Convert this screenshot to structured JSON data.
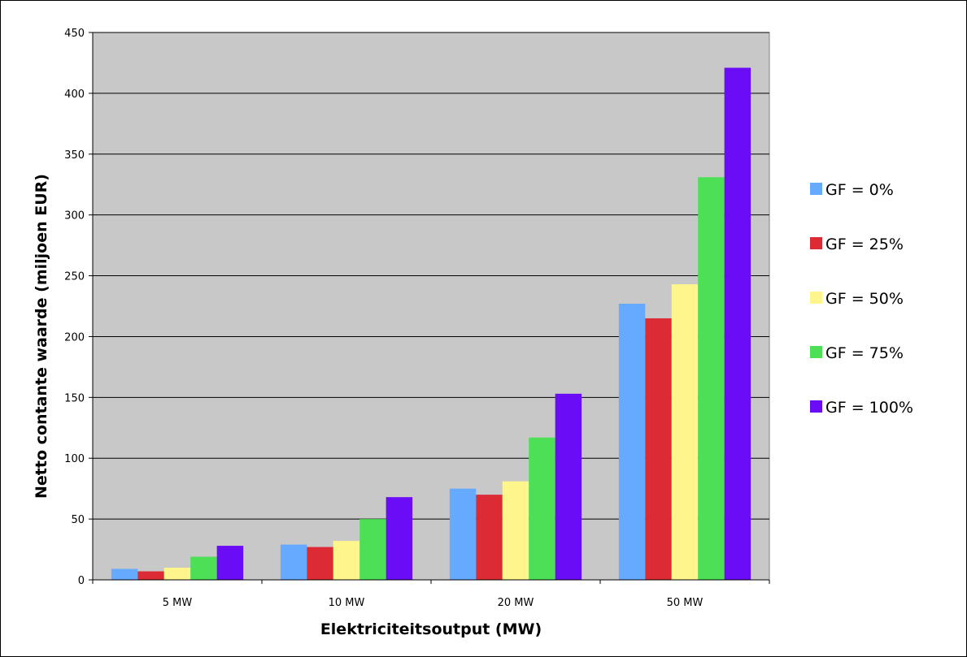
{
  "chart_data": {
    "type": "bar",
    "title": "",
    "xlabel": "Elektriciteitsoutput (MW)",
    "ylabel": "Netto contante waarde (miljoen EUR)",
    "ylim": [
      0,
      450
    ],
    "yticks": [
      0,
      50,
      100,
      150,
      200,
      250,
      300,
      350,
      400,
      450
    ],
    "grid": true,
    "legend_position": "right",
    "categories": [
      "5 MW",
      "10 MW",
      "20 MW",
      "50 MW"
    ],
    "series": [
      {
        "name": "GF = 0%",
        "color": "#66aaff",
        "values": [
          9,
          29,
          75,
          227
        ]
      },
      {
        "name": "GF = 25%",
        "color": "#dd2b35",
        "values": [
          7,
          27,
          70,
          215
        ]
      },
      {
        "name": "GF = 50%",
        "color": "#fff58d",
        "values": [
          10,
          32,
          81,
          243
        ]
      },
      {
        "name": "GF = 75%",
        "color": "#4ddf55",
        "values": [
          19,
          50,
          117,
          331
        ]
      },
      {
        "name": "GF = 100%",
        "color": "#6a0cf6",
        "values": [
          28,
          68,
          153,
          421
        ]
      }
    ],
    "plot_background": "#c8c8c8"
  }
}
